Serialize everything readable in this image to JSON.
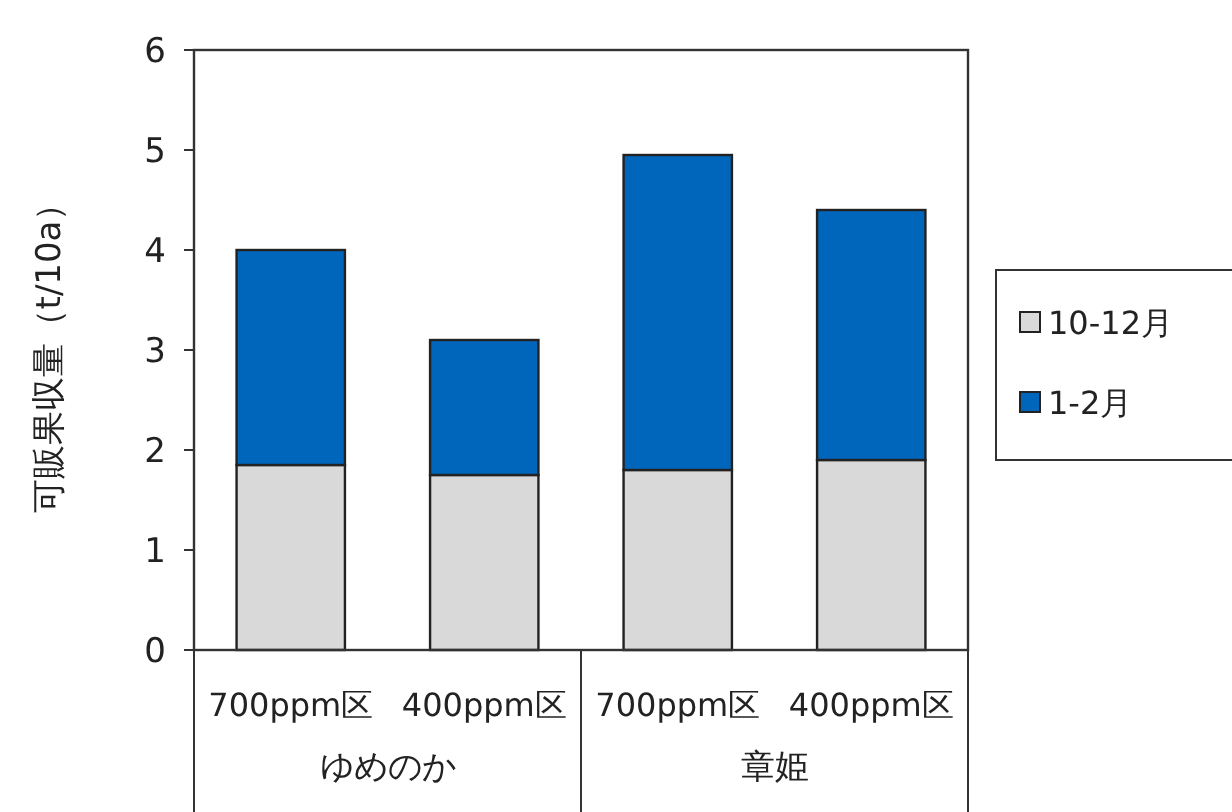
{
  "chart_data": {
    "type": "bar",
    "stacked": true,
    "ylabel": "可販果収量（t/10a）",
    "categories": [
      "700ppm区",
      "400ppm区",
      "700ppm区",
      "400ppm区"
    ],
    "annotations": [
      "ゆめのか",
      "章姫"
    ],
    "series": [
      {
        "name": "10-12月",
        "color": "#d9d9d9",
        "values": [
          1.85,
          1.75,
          1.8,
          1.9
        ]
      },
      {
        "name": "1-2月",
        "color": "#0066bb",
        "values": [
          2.15,
          1.35,
          3.15,
          2.5
        ]
      }
    ],
    "ylim": [
      0,
      6
    ],
    "yticks": [
      0,
      1,
      2,
      3,
      4,
      5,
      6
    ],
    "legend": "right"
  }
}
